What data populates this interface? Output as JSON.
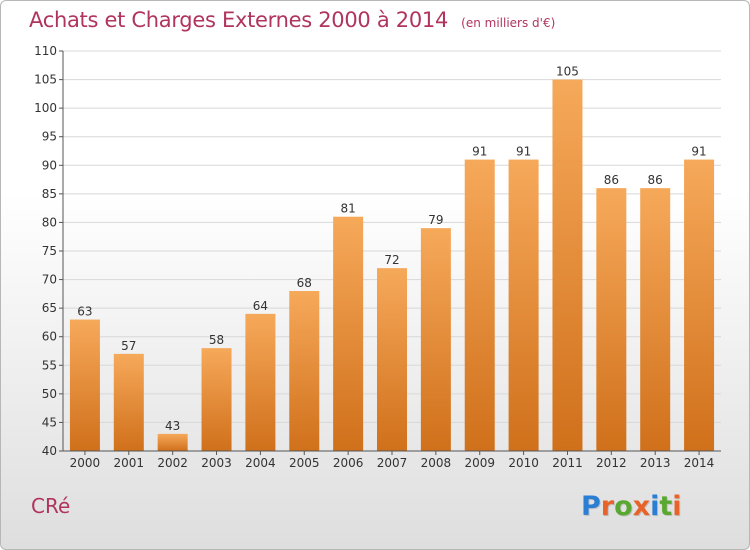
{
  "title": "Achats et Charges Externes 2000 à 2014",
  "unit": "(en milliers d'€)",
  "commune": "CRé",
  "logo": {
    "text": "Proxiti",
    "letters": [
      {
        "char": "P",
        "color": "#2a7fd4"
      },
      {
        "char": "r",
        "color": "#e8632a"
      },
      {
        "char": "o",
        "color": "#5aa832"
      },
      {
        "char": "x",
        "color": "#e8632a"
      },
      {
        "char": "i",
        "color": "#2a7fd4"
      },
      {
        "char": "t",
        "color": "#5aa832"
      },
      {
        "char": "i",
        "color": "#e8632a"
      }
    ]
  },
  "colors": {
    "title": "#b0345e",
    "bar_top": "#f6a95a",
    "bar_bottom": "#d0701b",
    "grid": "#d8d8d8",
    "axis": "#555555"
  },
  "chart_data": {
    "type": "bar",
    "title": "Achats et Charges Externes 2000 à 2014",
    "subtitle": "(en milliers d'€)",
    "xlabel": "",
    "ylabel": "",
    "categories": [
      "2000",
      "2001",
      "2002",
      "2003",
      "2004",
      "2005",
      "2006",
      "2007",
      "2008",
      "2009",
      "2010",
      "2011",
      "2012",
      "2013",
      "2014"
    ],
    "values": [
      63,
      57,
      43,
      58,
      64,
      68,
      81,
      72,
      79,
      91,
      91,
      105,
      86,
      86,
      91
    ],
    "ylim": [
      40,
      110
    ],
    "yticks": [
      40,
      45,
      50,
      55,
      60,
      65,
      70,
      75,
      80,
      85,
      90,
      95,
      100,
      105,
      110
    ],
    "grid": true,
    "data_labels": true
  }
}
